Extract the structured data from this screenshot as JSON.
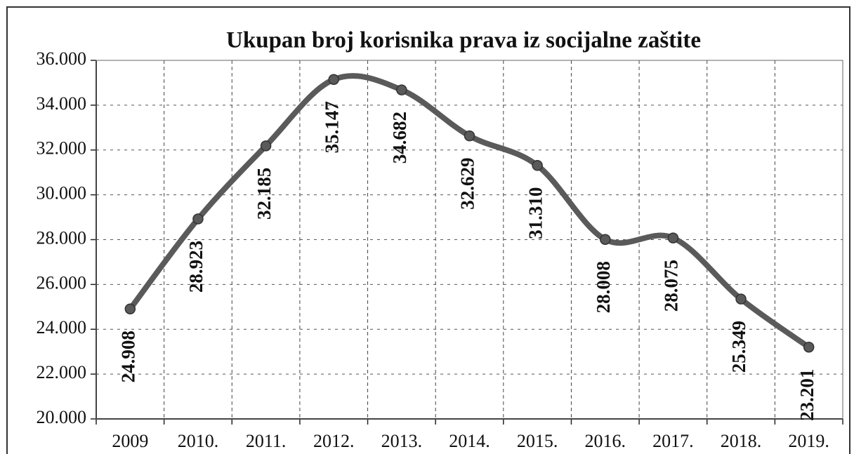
{
  "chart_data": {
    "type": "line",
    "title": "Ukupan broj korisnika  prava iz socijalne zaštite",
    "categories": [
      "2009",
      "2010.",
      "2011.",
      "2012.",
      "2013.",
      "2014.",
      "2015.",
      "2016.",
      "2017.",
      "2018.",
      "2019."
    ],
    "values": [
      24908,
      28923,
      32185,
      35147,
      34682,
      32629,
      31310,
      28008,
      28075,
      25349,
      23201
    ],
    "value_labels": [
      "24.908",
      "28.923",
      "32.185",
      "35.147",
      "34.682",
      "32.629",
      "31.310",
      "28.008",
      "28.075",
      "25.349",
      "23.201"
    ],
    "color": "#5a5a5a",
    "ylim": [
      20000,
      36000
    ],
    "yticks": [
      {
        "value": 20000,
        "label": "20.000"
      },
      {
        "value": 22000,
        "label": "22.000"
      },
      {
        "value": 24000,
        "label": "24.000"
      },
      {
        "value": 26000,
        "label": "26.000"
      },
      {
        "value": 28000,
        "label": "28.000"
      },
      {
        "value": 30000,
        "label": "30.000"
      },
      {
        "value": 32000,
        "label": "32.000"
      },
      {
        "value": 34000,
        "label": "34.000"
      },
      {
        "value": 36000,
        "label": "36.000"
      }
    ],
    "grid": true
  }
}
